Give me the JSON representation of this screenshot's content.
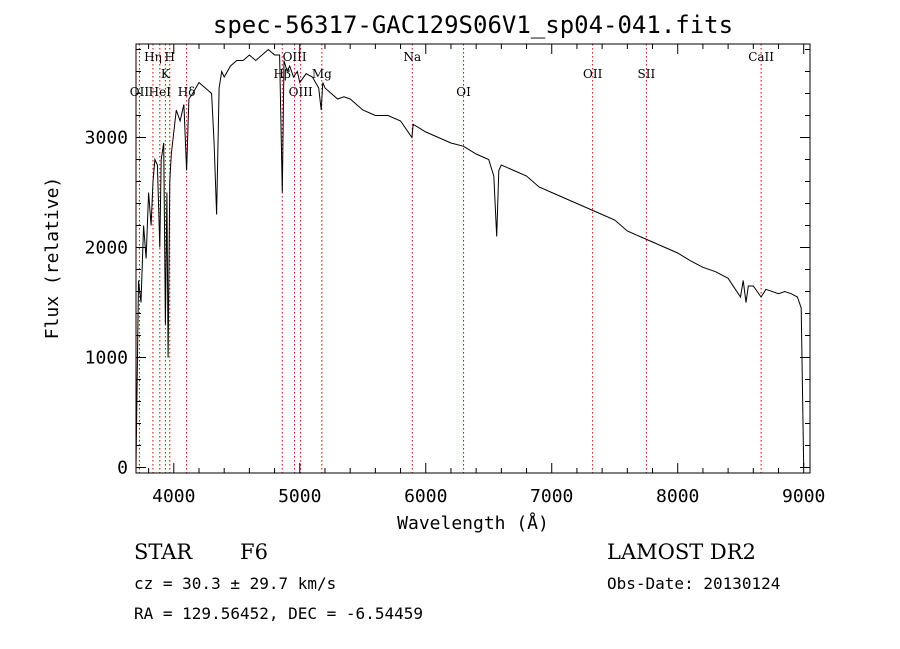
{
  "chart_data": {
    "type": "line",
    "title": "spec-56317-GAC129S06V1_sp04-041.fits",
    "xlabel": "Wavelength (Å)",
    "ylabel": "Flux (relative)",
    "xlim": [
      3700,
      9050
    ],
    "ylim": [
      -50,
      3850
    ],
    "xticks": [
      4000,
      5000,
      6000,
      7000,
      8000,
      9000
    ],
    "yticks": [
      0,
      1000,
      2000,
      3000
    ],
    "grid": false,
    "line_color": "#000000",
    "marker_color": "#cc0000",
    "series": [
      {
        "x": [
          3700,
          3720,
          3740,
          3760,
          3780,
          3800,
          3820,
          3835,
          3850,
          3870,
          3889,
          3900,
          3920,
          3933,
          3945,
          3955,
          3968,
          3980,
          4000,
          4020,
          4050,
          4080,
          4102,
          4120,
          4150,
          4200,
          4250,
          4300,
          4320,
          4340,
          4360,
          4380,
          4400,
          4450,
          4500,
          4550,
          4600,
          4650,
          4700,
          4750,
          4800,
          4840,
          4861,
          4875,
          4900,
          4920,
          4950,
          4980,
          5000,
          5050,
          5100,
          5150,
          5170,
          5183,
          5200,
          5250,
          5300,
          5350,
          5400,
          5450,
          5500,
          5600,
          5700,
          5800,
          5890,
          5900,
          6000,
          6100,
          6200,
          6300,
          6400,
          6500,
          6540,
          6563,
          6580,
          6600,
          6700,
          6800,
          6900,
          7000,
          7100,
          7200,
          7300,
          7400,
          7500,
          7600,
          7700,
          7800,
          7900,
          8000,
          8100,
          8200,
          8300,
          8400,
          8498,
          8520,
          8542,
          8560,
          8600,
          8662,
          8700,
          8800,
          8850,
          8900,
          8950,
          8980,
          9000
        ],
        "y": [
          0,
          1700,
          1500,
          2200,
          1900,
          2500,
          2200,
          2600,
          2800,
          2750,
          2000,
          2800,
          2950,
          1300,
          2500,
          1000,
          2600,
          2850,
          3050,
          3250,
          3150,
          3300,
          2700,
          3350,
          3400,
          3500,
          3450,
          3400,
          2950,
          2300,
          3450,
          3600,
          3550,
          3650,
          3700,
          3700,
          3750,
          3700,
          3750,
          3800,
          3750,
          3750,
          2500,
          3700,
          3600,
          3650,
          3550,
          3600,
          3500,
          3580,
          3550,
          3450,
          3250,
          3500,
          3450,
          3400,
          3350,
          3370,
          3350,
          3300,
          3250,
          3200,
          3200,
          3150,
          3000,
          3120,
          3050,
          3000,
          2950,
          2920,
          2850,
          2800,
          2650,
          2100,
          2700,
          2750,
          2700,
          2650,
          2550,
          2500,
          2450,
          2400,
          2350,
          2300,
          2250,
          2150,
          2100,
          2050,
          2000,
          1950,
          1880,
          1820,
          1780,
          1720,
          1550,
          1700,
          1500,
          1650,
          1650,
          1550,
          1620,
          1580,
          1600,
          1580,
          1550,
          1450,
          0
        ]
      }
    ],
    "line_markers": [
      {
        "label": "OII",
        "x": 3727,
        "row": 3
      },
      {
        "label": "Hη",
        "x": 3835,
        "row": 1
      },
      {
        "label": "HeI",
        "x": 3889,
        "row": 3
      },
      {
        "label": "K",
        "x": 3933,
        "row": 2
      },
      {
        "label": "H",
        "x": 3968,
        "row": 1
      },
      {
        "label": "Hδ",
        "x": 4102,
        "row": 3
      },
      {
        "label": "Hβ",
        "x": 4861,
        "row": 2
      },
      {
        "label": "OIII",
        "x": 4959,
        "row": 1
      },
      {
        "label": "OIII",
        "x": 5007,
        "row": 3
      },
      {
        "label": "Mg",
        "x": 5175,
        "row": 2
      },
      {
        "label": "Na",
        "x": 5893,
        "row": 1
      },
      {
        "label": "OI",
        "x": 6300,
        "row": 3
      },
      {
        "label": "OII",
        "x": 7325,
        "row": 2
      },
      {
        "label": "SII",
        "x": 7751,
        "row": 2
      },
      {
        "label": "CaII",
        "x": 8662,
        "row": 1
      }
    ]
  },
  "info": {
    "object_class": "STAR",
    "subclass": "F6",
    "survey": "LAMOST DR2",
    "cz": "cz = 30.3 ± 29.7 km/s",
    "obs_date": "Obs-Date: 20130124",
    "coords": "RA = 129.56452, DEC =  -6.54459"
  }
}
